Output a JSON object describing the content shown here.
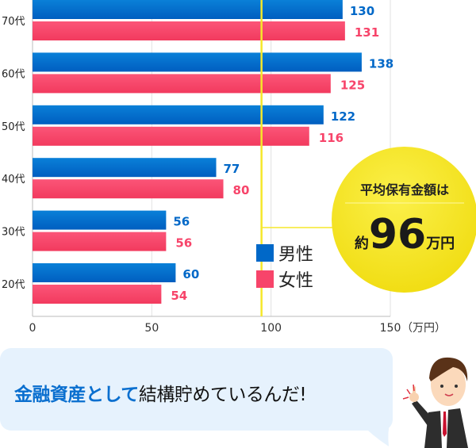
{
  "chart_data": {
    "type": "bar",
    "orientation": "horizontal",
    "categories": [
      "70代",
      "60代",
      "50代",
      "40代",
      "30代",
      "20代"
    ],
    "series": [
      {
        "name": "男性",
        "color": "#0068c8",
        "values": [
          130,
          138,
          122,
          77,
          56,
          60
        ]
      },
      {
        "name": "女性",
        "color": "#f7446a",
        "values": [
          131,
          125,
          116,
          80,
          56,
          54
        ]
      }
    ],
    "xlim": [
      0,
      150
    ],
    "xticks": [
      0,
      50,
      100,
      150
    ],
    "xunit": "（万円）",
    "grid": true,
    "legend": "bottom-right-inside",
    "reference_line": {
      "value": 96,
      "color": "#f5e82a"
    },
    "callout": {
      "title": "平均保有金額は",
      "prefix": "約",
      "value": "96",
      "suffix": "万円"
    }
  },
  "speech": {
    "highlight": "金融資産として",
    "rest": "結構貯めているんだ!"
  },
  "character": "businessman-pointing"
}
